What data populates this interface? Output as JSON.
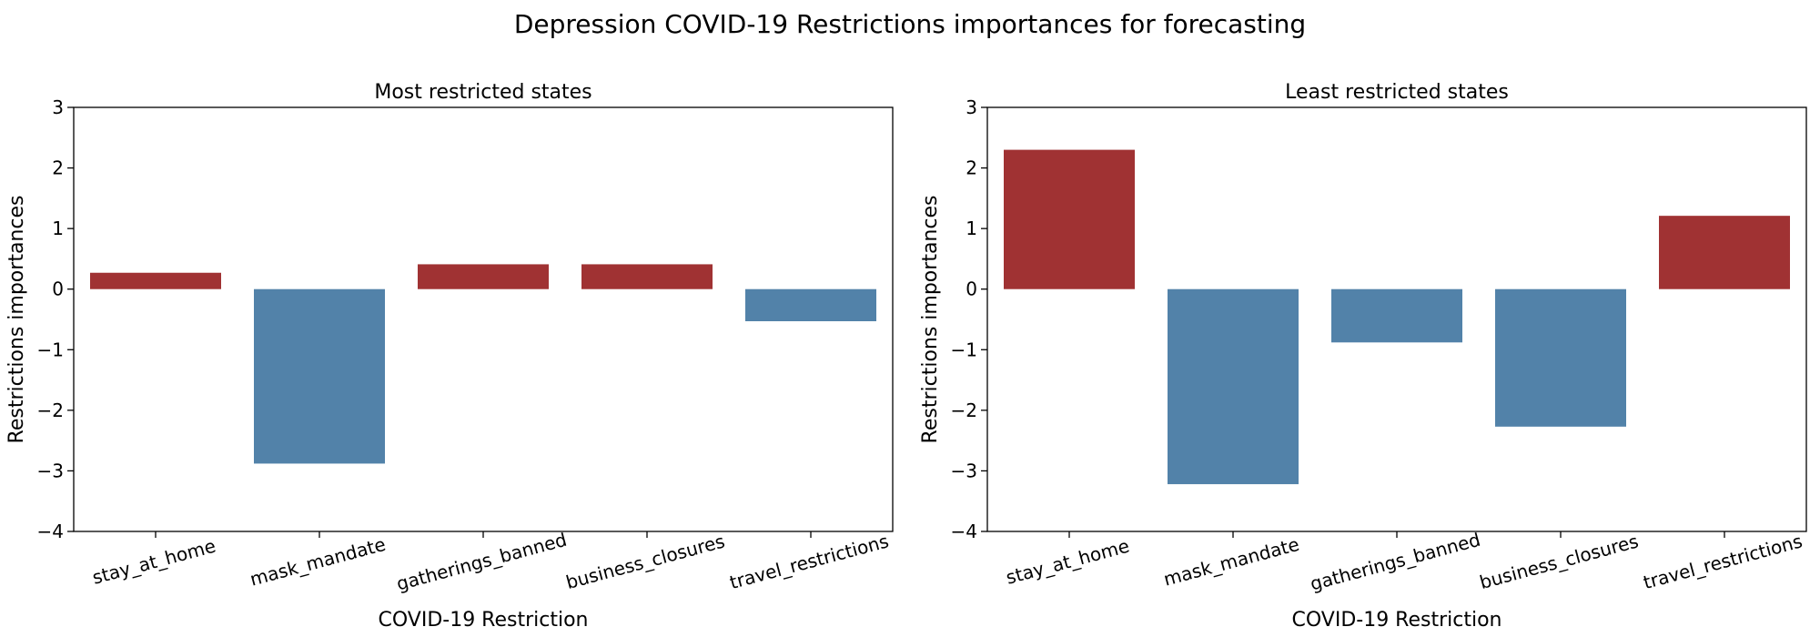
{
  "figure": {
    "title": "Depression COVID-19 Restrictions importances for forecasting"
  },
  "colors": {
    "positive": "#a03233",
    "negative": "#5282a9",
    "axis": "#000000"
  },
  "chart_data": [
    {
      "type": "bar",
      "title": "Most restricted states",
      "xlabel": "COVID-19 Restriction",
      "ylabel": "Restrictions importances",
      "categories": [
        "stay_at_home",
        "mask_mandate",
        "gatherings_banned",
        "business_closures",
        "travel_restrictions"
      ],
      "values": [
        0.27,
        -2.88,
        0.41,
        0.41,
        -0.53
      ],
      "ylim": [
        -4,
        3
      ],
      "yticks": [
        -4,
        -3,
        -2,
        -1,
        0,
        1,
        2,
        3
      ],
      "ytick_labels": [
        "−4",
        "−3",
        "−2",
        "−1",
        "0",
        "1",
        "2",
        "3"
      ],
      "grid": false,
      "legend": "none"
    },
    {
      "type": "bar",
      "title": "Least restricted states",
      "xlabel": "COVID-19 Restriction",
      "ylabel": "Restrictions importances",
      "categories": [
        "stay_at_home",
        "mask_mandate",
        "gatherings_banned",
        "business_closures",
        "travel_restrictions"
      ],
      "values": [
        2.3,
        -3.22,
        -0.88,
        -2.27,
        1.21
      ],
      "ylim": [
        -4,
        3
      ],
      "yticks": [
        -4,
        -3,
        -2,
        -1,
        0,
        1,
        2,
        3
      ],
      "ytick_labels": [
        "−4",
        "−3",
        "−2",
        "−1",
        "0",
        "1",
        "2",
        "3"
      ],
      "grid": false,
      "legend": "none"
    }
  ]
}
